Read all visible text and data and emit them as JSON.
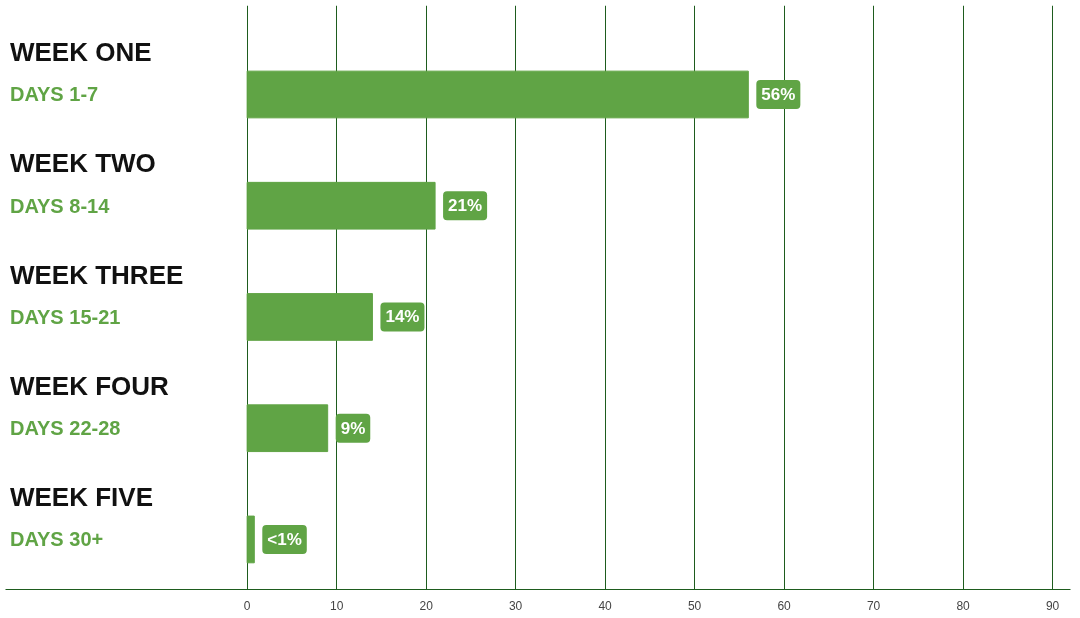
{
  "chart_data": {
    "type": "bar",
    "orientation": "horizontal",
    "categories": [
      "WEEK ONE\nDAYS 1-7",
      "WEEK TWO\nDAYS 8-14",
      "WEEK THREE\nDAYS 15-21",
      "WEEK FOUR\nDAYS 22-28",
      "WEEK FIVE\nDAYS 30+"
    ],
    "values": [
      56,
      21,
      14,
      9,
      0.8
    ],
    "value_labels": [
      "56%",
      "21%",
      "14%",
      "9%",
      "<1%"
    ],
    "color": "#60a445",
    "xlim": [
      -27,
      92
    ],
    "xticks": [
      0,
      10,
      20,
      30,
      40,
      50,
      60,
      70,
      80,
      90
    ],
    "grid": "x"
  }
}
